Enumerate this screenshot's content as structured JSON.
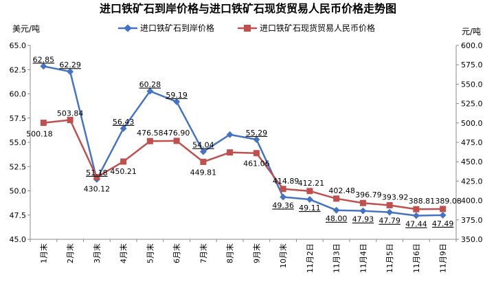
{
  "chart_data": {
    "type": "line",
    "title": "进口铁矿石到岸价格与进口铁矿石现货贸易人民币价格走势图",
    "ylabel_left": "美元/吨",
    "ylabel_right": "元/吨",
    "ylim_left": [
      45.0,
      65.0
    ],
    "ylim_right": [
      350.0,
      600.0
    ],
    "yticks_left": [
      "45.0",
      "47.5",
      "50.0",
      "52.5",
      "55.0",
      "57.5",
      "60.0",
      "62.5",
      "65.0"
    ],
    "yticks_right": [
      "350.0",
      "375.0",
      "400.0",
      "425.0",
      "450.0",
      "475.0",
      "500.0",
      "525.0",
      "550.0",
      "575.0",
      "600.0"
    ],
    "categories": [
      "1月末",
      "2月末",
      "3月末",
      "4月末",
      "5月末",
      "6月末",
      "7月末",
      "8月末",
      "9月末",
      "10月末",
      "11月2日",
      "11月3日",
      "11月4日",
      "11月5日",
      "11月6日",
      "11月9日"
    ],
    "legend_position": "top",
    "grid": false,
    "series": [
      {
        "name": "进口铁矿石到岸价格",
        "axis": "left",
        "color": "#4472c4",
        "marker": "diamond",
        "values": [
          62.85,
          62.29,
          51.18,
          56.43,
          60.28,
          59.19,
          54.04,
          55.8,
          55.29,
          49.36,
          49.11,
          48.0,
          47.93,
          47.79,
          47.44,
          47.49
        ],
        "labels": [
          "62.85",
          "62.29",
          "51.18",
          "56.43",
          "60.28",
          "59.19",
          "54.04",
          null,
          "55.29",
          "49.36",
          "49.11",
          "48.00",
          "47.93",
          "47.79",
          "47.44",
          "47.49"
        ]
      },
      {
        "name": "进口铁矿石现货贸易人民币价格",
        "axis": "right",
        "color": "#c0504d",
        "marker": "square",
        "values": [
          500.18,
          503.84,
          430.12,
          450.21,
          476.58,
          476.9,
          449.81,
          462.0,
          461.06,
          414.89,
          412.21,
          402.48,
          396.79,
          393.92,
          388.81,
          389.08
        ],
        "labels": [
          "500.18",
          "503.84",
          "430.12",
          "450.21",
          "476.58",
          "476.90",
          "449.81",
          null,
          "461.06",
          "414.89",
          "412.21",
          "402.48",
          "396.79",
          "393.92",
          "388.81",
          "389.08"
        ]
      }
    ]
  }
}
